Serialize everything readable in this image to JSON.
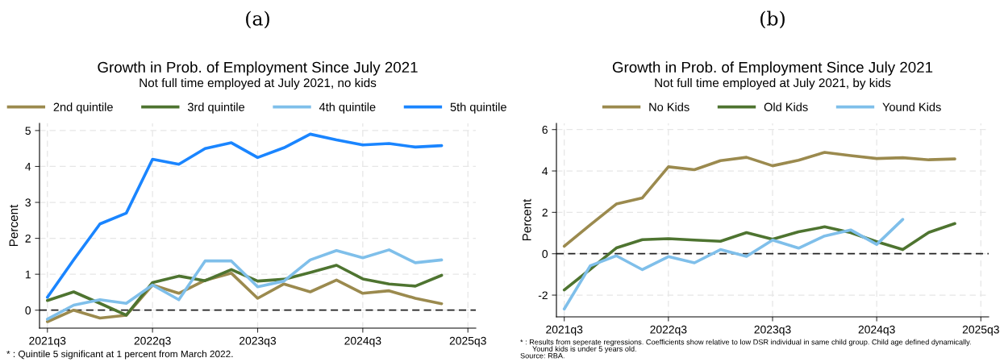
{
  "chart_data": [
    {
      "type": "line",
      "title": "Growth in Prob. of Employment Since July 2021",
      "subtitle": "Not full time employed at July 2021, no kids",
      "ylabel": "Percent",
      "categories": [
        "2021q3",
        null,
        null,
        null,
        "2022q3",
        null,
        null,
        null,
        "2023q3",
        null,
        null,
        null,
        "2024q3",
        null,
        null,
        null,
        "2025q3"
      ],
      "series": [
        {
          "name": "2nd quintile",
          "color": "#9b8a4e",
          "values": [
            -0.32,
            0.0,
            -0.22,
            -0.14,
            0.7,
            0.47,
            0.83,
            1.03,
            0.33,
            0.73,
            0.51,
            0.84,
            0.47,
            0.54,
            0.33,
            0.18,
            null
          ]
        },
        {
          "name": "3rd quintile",
          "color": "#4e7430",
          "values": [
            0.27,
            0.51,
            0.19,
            -0.14,
            0.77,
            0.95,
            0.82,
            1.13,
            0.81,
            0.86,
            1.05,
            1.25,
            0.87,
            0.73,
            0.67,
            0.97,
            null
          ]
        },
        {
          "name": "4th quintile",
          "color": "#7fbfea",
          "values": [
            -0.25,
            0.14,
            0.29,
            0.19,
            0.7,
            0.29,
            1.37,
            1.37,
            0.65,
            0.81,
            1.4,
            1.66,
            1.46,
            1.68,
            1.32,
            1.4,
            null
          ]
        },
        {
          "name": "5th quintile",
          "color": "#1a85ff",
          "values": [
            0.36,
            1.4,
            2.4,
            2.7,
            4.2,
            4.06,
            4.5,
            4.66,
            4.25,
            4.52,
            4.9,
            4.74,
            4.6,
            4.64,
            4.54,
            4.58,
            null
          ]
        }
      ],
      "ylim": [
        -0.5,
        5.2
      ],
      "yticks": [
        0,
        1,
        2,
        3,
        4,
        5
      ],
      "ref_lines": [
        {
          "axis": "y",
          "value": 0,
          "color": "#222222",
          "line_style": "dashed"
        }
      ],
      "grid": true,
      "legend": "top",
      "line_style": "solid",
      "annotations": [
        "(a)",
        "* : Quintile 5 significant at 1 percent from March 2022."
      ]
    },
    {
      "type": "line",
      "title": "Growth in Prob. of Employment Since July 2021",
      "subtitle": "Not full time employed at July 2021, by kids",
      "ylabel": "Percent",
      "categories": [
        "2021q3",
        null,
        null,
        null,
        "2022q3",
        null,
        null,
        null,
        "2023q3",
        null,
        null,
        null,
        "2024q3",
        null,
        null,
        null,
        "2025q3"
      ],
      "series": [
        {
          "name": "No Kids",
          "color": "#9b8a4e",
          "values": [
            0.36,
            1.4,
            2.4,
            2.7,
            4.2,
            4.06,
            4.5,
            4.66,
            4.25,
            4.52,
            4.9,
            4.74,
            4.6,
            4.64,
            4.54,
            4.58,
            null
          ]
        },
        {
          "name": "Old Kids",
          "color": "#4e7430",
          "values": [
            -1.75,
            -0.75,
            0.28,
            0.68,
            0.73,
            0.66,
            0.6,
            1.02,
            0.7,
            1.06,
            1.3,
            1.02,
            0.58,
            0.2,
            1.03,
            1.46,
            null
          ]
        },
        {
          "name": "Yound Kids",
          "color": "#7fbfea",
          "values": [
            -2.67,
            -0.58,
            -0.1,
            -0.77,
            -0.14,
            -0.44,
            0.2,
            -0.13,
            0.66,
            0.27,
            0.86,
            1.15,
            0.45,
            1.66,
            null,
            null,
            null
          ]
        }
      ],
      "ylim": [
        -3.05,
        6.3
      ],
      "yticks": [
        -2,
        0,
        2,
        4,
        6
      ],
      "ref_lines": [
        {
          "axis": "y",
          "value": 0,
          "color": "#222222",
          "line_style": "dashed"
        }
      ],
      "grid": true,
      "legend": "top",
      "line_style": "solid",
      "annotations": [
        "(b)",
        "* : Results from seperate regressions. Coefficients show relative to low DSR individual in same child group. Child age defined dynamically.",
        "Yound kids is under 5 years old.",
        "Source: RBA."
      ]
    }
  ]
}
